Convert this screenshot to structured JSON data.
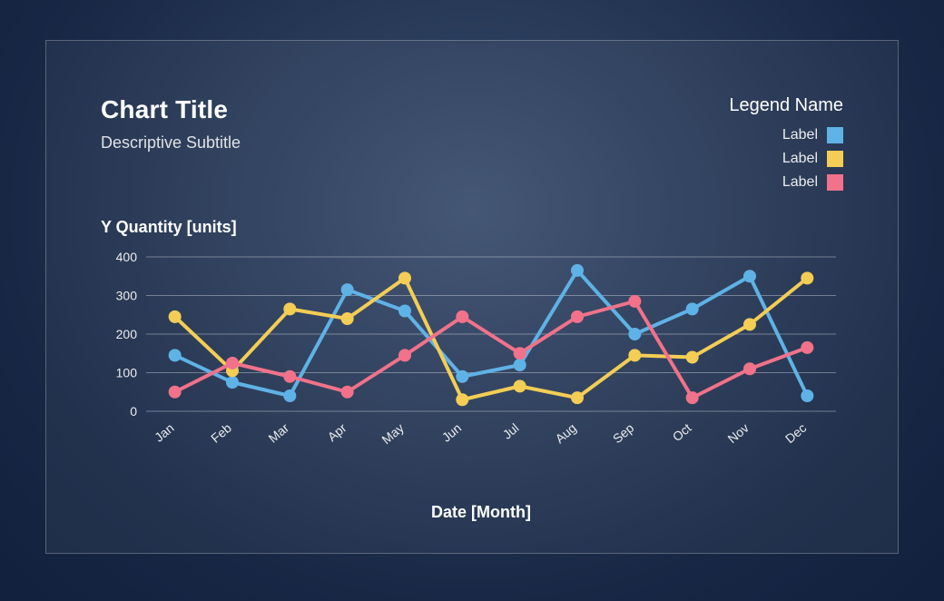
{
  "chart": {
    "type": "line",
    "title": "Chart Title",
    "subtitle": "Descriptive Subtitle",
    "y_axis_title": "Y Quantity [units]",
    "x_axis_title": "Date [Month]",
    "legend_title": "Legend Name",
    "background_card_border": "rgba(255,255,255,0.25)",
    "grid_color": "rgba(255,255,255,0.35)",
    "text_color": "#ffffff",
    "title_fontsize": 28,
    "subtitle_fontsize": 18,
    "axis_title_fontsize": 18,
    "tick_fontsize": 14,
    "legend_fontsize": 16,
    "line_width": 4,
    "marker_radius": 7,
    "marker_style": "circle",
    "ylim": [
      0,
      400
    ],
    "ytick_step": 100,
    "yticks": [
      0,
      100,
      200,
      300,
      400
    ],
    "categories": [
      "Jan",
      "Feb",
      "Mar",
      "Apr",
      "May",
      "Jun",
      "Jul",
      "Aug",
      "Sep",
      "Oct",
      "Nov",
      "Dec"
    ],
    "series": [
      {
        "label": "Label",
        "color": "#5fb2e6",
        "values": [
          145,
          75,
          40,
          315,
          260,
          90,
          120,
          365,
          200,
          265,
          350,
          40
        ]
      },
      {
        "label": "Label",
        "color": "#f4cd55",
        "values": [
          245,
          105,
          265,
          240,
          345,
          30,
          65,
          35,
          145,
          140,
          225,
          345
        ]
      },
      {
        "label": "Label",
        "color": "#f1728a",
        "values": [
          50,
          125,
          90,
          50,
          145,
          245,
          150,
          245,
          285,
          35,
          110,
          165
        ]
      }
    ]
  }
}
